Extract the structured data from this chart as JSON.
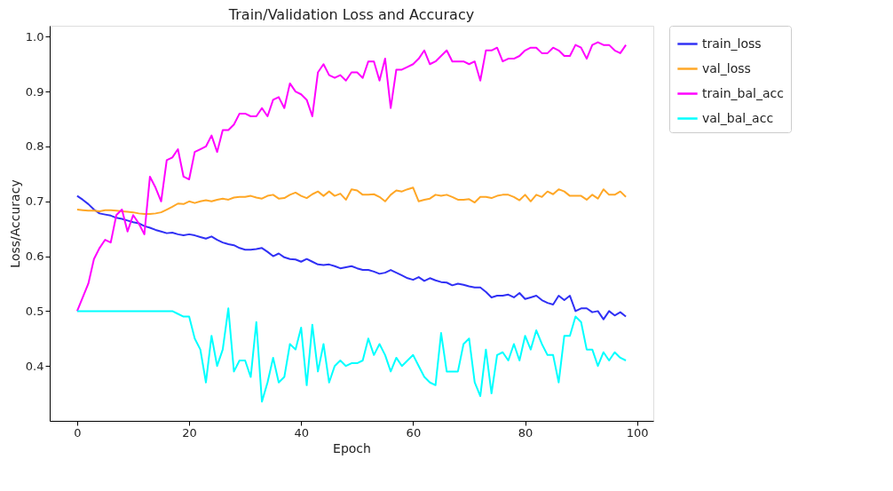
{
  "chart_data": {
    "type": "line",
    "title": "Train/Validation Loss and Accuracy",
    "xlabel": "Epoch",
    "ylabel": "Loss/Accuracy",
    "x": [
      0,
      1,
      2,
      3,
      4,
      5,
      6,
      7,
      8,
      9,
      10,
      11,
      12,
      13,
      14,
      15,
      16,
      17,
      18,
      19,
      20,
      21,
      22,
      23,
      24,
      25,
      26,
      27,
      28,
      29,
      30,
      31,
      32,
      33,
      34,
      35,
      36,
      37,
      38,
      39,
      40,
      41,
      42,
      43,
      44,
      45,
      46,
      47,
      48,
      49,
      50,
      51,
      52,
      53,
      54,
      55,
      56,
      57,
      58,
      59,
      60,
      61,
      62,
      63,
      64,
      65,
      66,
      67,
      68,
      69,
      70,
      71,
      72,
      73,
      74,
      75,
      76,
      77,
      78,
      79,
      80,
      81,
      82,
      83,
      84,
      85,
      86,
      87,
      88,
      89,
      90,
      91,
      92,
      93,
      94,
      95,
      96,
      97,
      98
    ],
    "series": [
      {
        "name": "train_loss",
        "color": "#3030f5",
        "values": [
          0.71,
          0.703,
          0.695,
          0.685,
          0.678,
          0.676,
          0.674,
          0.67,
          0.668,
          0.665,
          0.662,
          0.66,
          0.655,
          0.652,
          0.648,
          0.645,
          0.642,
          0.643,
          0.64,
          0.638,
          0.64,
          0.638,
          0.635,
          0.632,
          0.636,
          0.63,
          0.625,
          0.622,
          0.62,
          0.615,
          0.612,
          0.612,
          0.613,
          0.615,
          0.608,
          0.6,
          0.605,
          0.598,
          0.595,
          0.594,
          0.59,
          0.595,
          0.59,
          0.585,
          0.584,
          0.585,
          0.582,
          0.578,
          0.58,
          0.582,
          0.578,
          0.575,
          0.575,
          0.572,
          0.568,
          0.57,
          0.575,
          0.57,
          0.565,
          0.56,
          0.557,
          0.562,
          0.555,
          0.56,
          0.556,
          0.553,
          0.552,
          0.547,
          0.55,
          0.548,
          0.545,
          0.543,
          0.543,
          0.535,
          0.525,
          0.528,
          0.528,
          0.53,
          0.525,
          0.533,
          0.522,
          0.525,
          0.528,
          0.52,
          0.515,
          0.512,
          0.528,
          0.52,
          0.528,
          0.5,
          0.505,
          0.505,
          0.498,
          0.5,
          0.485,
          0.5,
          0.492,
          0.498,
          0.49
        ]
      },
      {
        "name": "val_loss",
        "color": "#ffa726",
        "values": [
          0.685,
          0.684,
          0.683,
          0.683,
          0.682,
          0.684,
          0.684,
          0.683,
          0.682,
          0.681,
          0.68,
          0.678,
          0.677,
          0.677,
          0.678,
          0.68,
          0.685,
          0.69,
          0.696,
          0.695,
          0.7,
          0.697,
          0.7,
          0.702,
          0.7,
          0.703,
          0.705,
          0.703,
          0.707,
          0.708,
          0.708,
          0.71,
          0.707,
          0.705,
          0.71,
          0.712,
          0.705,
          0.706,
          0.712,
          0.716,
          0.71,
          0.706,
          0.713,
          0.718,
          0.71,
          0.718,
          0.71,
          0.714,
          0.703,
          0.722,
          0.72,
          0.712,
          0.712,
          0.713,
          0.708,
          0.7,
          0.712,
          0.72,
          0.718,
          0.722,
          0.725,
          0.7,
          0.703,
          0.705,
          0.712,
          0.71,
          0.712,
          0.708,
          0.703,
          0.703,
          0.704,
          0.698,
          0.708,
          0.708,
          0.706,
          0.71,
          0.712,
          0.712,
          0.708,
          0.702,
          0.712,
          0.7,
          0.712,
          0.708,
          0.718,
          0.713,
          0.722,
          0.718,
          0.71,
          0.71,
          0.71,
          0.703,
          0.712,
          0.705,
          0.722,
          0.712,
          0.712,
          0.718,
          0.708
        ]
      },
      {
        "name": "train_bal_acc",
        "color": "#ff00ff",
        "values": [
          0.5,
          0.525,
          0.55,
          0.595,
          0.615,
          0.63,
          0.625,
          0.675,
          0.685,
          0.645,
          0.675,
          0.66,
          0.64,
          0.745,
          0.725,
          0.7,
          0.775,
          0.78,
          0.795,
          0.745,
          0.74,
          0.79,
          0.795,
          0.8,
          0.82,
          0.79,
          0.83,
          0.83,
          0.84,
          0.86,
          0.86,
          0.855,
          0.855,
          0.87,
          0.855,
          0.885,
          0.89,
          0.87,
          0.915,
          0.9,
          0.895,
          0.885,
          0.855,
          0.935,
          0.95,
          0.93,
          0.925,
          0.93,
          0.92,
          0.935,
          0.935,
          0.925,
          0.955,
          0.955,
          0.92,
          0.96,
          0.87,
          0.94,
          0.94,
          0.945,
          0.95,
          0.96,
          0.975,
          0.95,
          0.955,
          0.965,
          0.975,
          0.955,
          0.955,
          0.955,
          0.95,
          0.955,
          0.92,
          0.975,
          0.975,
          0.98,
          0.955,
          0.96,
          0.96,
          0.965,
          0.975,
          0.98,
          0.98,
          0.97,
          0.97,
          0.98,
          0.975,
          0.965,
          0.965,
          0.985,
          0.98,
          0.96,
          0.985,
          0.99,
          0.985,
          0.985,
          0.975,
          0.97,
          0.985
        ]
      },
      {
        "name": "val_bal_acc",
        "color": "#00ffff",
        "values": [
          0.5,
          0.5,
          0.5,
          0.5,
          0.5,
          0.5,
          0.5,
          0.5,
          0.5,
          0.5,
          0.5,
          0.5,
          0.5,
          0.5,
          0.5,
          0.5,
          0.5,
          0.5,
          0.495,
          0.49,
          0.49,
          0.45,
          0.43,
          0.37,
          0.455,
          0.4,
          0.43,
          0.505,
          0.39,
          0.41,
          0.41,
          0.38,
          0.48,
          0.335,
          0.37,
          0.415,
          0.37,
          0.38,
          0.44,
          0.43,
          0.47,
          0.365,
          0.475,
          0.39,
          0.44,
          0.37,
          0.4,
          0.41,
          0.4,
          0.405,
          0.405,
          0.41,
          0.45,
          0.42,
          0.44,
          0.42,
          0.39,
          0.415,
          0.4,
          0.41,
          0.42,
          0.4,
          0.38,
          0.37,
          0.365,
          0.46,
          0.39,
          0.39,
          0.39,
          0.44,
          0.45,
          0.37,
          0.345,
          0.43,
          0.35,
          0.42,
          0.425,
          0.41,
          0.44,
          0.41,
          0.455,
          0.43,
          0.465,
          0.44,
          0.42,
          0.42,
          0.37,
          0.455,
          0.455,
          0.49,
          0.48,
          0.43,
          0.43,
          0.4,
          0.425,
          0.41,
          0.425,
          0.415,
          0.41
        ]
      }
    ],
    "xlim": [
      -4.9,
      102.9
    ],
    "xticks": [
      0,
      20,
      40,
      60,
      80,
      100
    ],
    "ylim": [
      0.3,
      1.02
    ],
    "yticks": [
      {
        "value": 0.4,
        "label": "0.4"
      },
      {
        "value": 0.5,
        "label": "0.5"
      },
      {
        "value": 0.6,
        "label": "0.6"
      },
      {
        "value": 0.7,
        "label": "0.7"
      },
      {
        "value": 0.8,
        "label": "0.8"
      },
      {
        "value": 0.9,
        "label": "0.9"
      },
      {
        "value": 1.0,
        "label": "1.0"
      }
    ],
    "legend": "right",
    "grid": false
  }
}
